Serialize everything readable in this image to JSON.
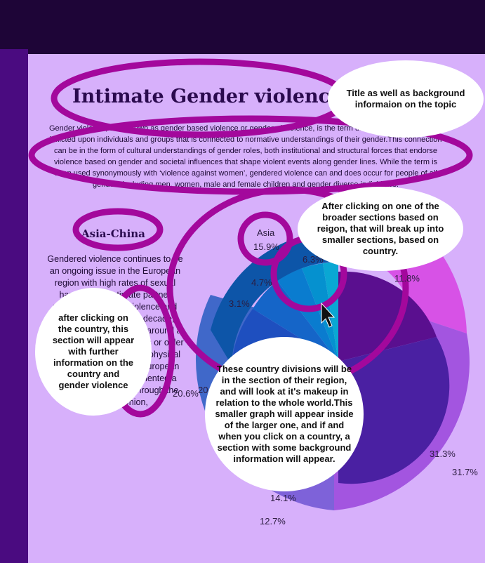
{
  "page": {
    "title": "Intimate Gender violence",
    "intro": "Gender violence, also known as gender based violence or gendered violence, is the term used to describe violence inflicted upon individuals and groups that is connected to normative understandings of their gender.This connection can be in the form of cultural understandings of gender roles, both institutional and structural forces that endorse violence based on gender and societal influences that shape violent events along gender lines. While the term is often used synonymously with ‘violence against women’, gendered violence can and does occur for people of all genders including men, women, male and female children and gender diverse individuals."
  },
  "region_panel": {
    "heading": "Asia-China",
    "body": "Gendered violence continues to be an ongoing issue in the European region with high rates of sexual harassment, intimate partner violence, domestic violence and conflict.Within the last decade, research has shown that around a third of all women 15 years or older experience some form of physical or sexual violence.The European institutions have implemented a plethora of initiatives through the European Union,"
  },
  "chart_data": {
    "type": "pie",
    "title": "",
    "outer_ring_labels": [
      "11.8%",
      "31.3%",
      "31.7%",
      "12.7%",
      "20.6%"
    ],
    "inner_ring_labels": [
      "Asia",
      "15.9%",
      "6.3%",
      "4.7%",
      "3.1%",
      "14.1%",
      "20"
    ],
    "colors": {
      "ring_magenta": "#d752e6",
      "ring_violet": "#a355e0",
      "ring_lilac": "#7e62d9",
      "ring_blue": "#4068c9",
      "core_purple": "#5a0f8f",
      "core_indigo": "#4a20a2",
      "asia_blues": [
        "#1e4fbf",
        "#1565c8",
        "#0a7ccf",
        "#0591cf",
        "#0aa7d3"
      ]
    }
  },
  "annotations": {
    "title_note": "Title as well as background informaion on the topic",
    "region_note": "After clicking on one of the broader sections based on reigon, that will break up into smaller sections, based on country.",
    "country_note": "after clicking on the country, this section will appear with further information on the country and gender violence",
    "division_note": "These country divisions will be in the section of their region, and will look at it's makeup in relation to the whole world.This smaller graph will appear inside of the larger one, and if and when you click on a country, a section with some background information will appear."
  },
  "colors": {
    "page_bg": "#d7b0fb",
    "topbar": "#1e0537",
    "sidebar": "#4a0b80",
    "sketch_stroke": "#a3089c",
    "title_text": "#2a0a4e"
  }
}
